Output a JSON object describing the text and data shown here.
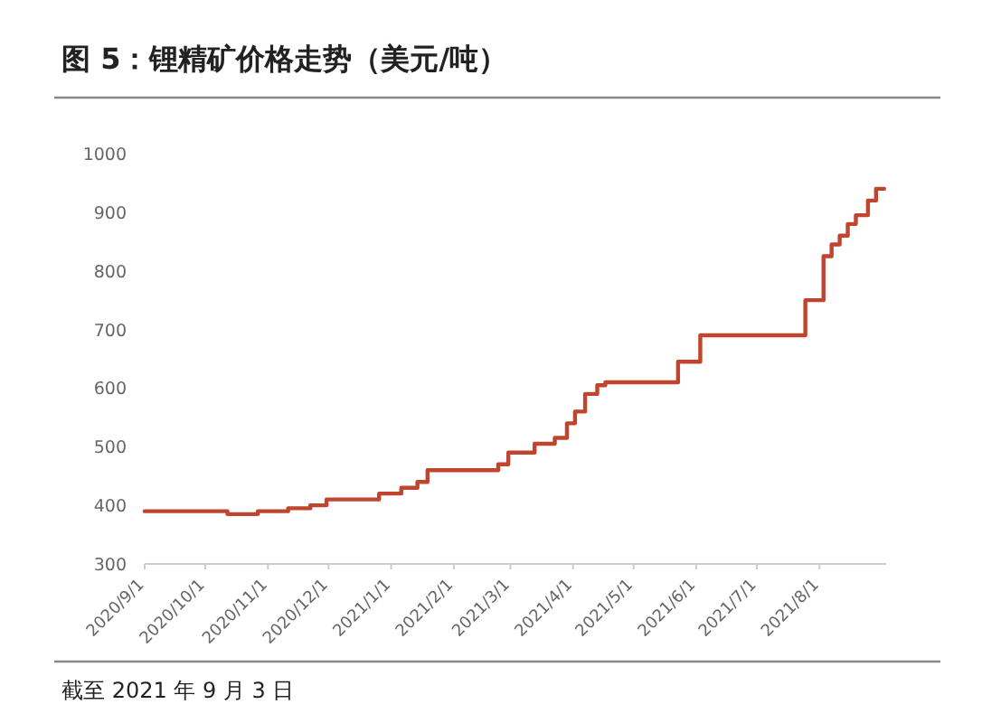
{
  "chart_data": {
    "type": "step",
    "title": "图 5：锂精矿价格走势（美元/吨）",
    "annotations": [
      "截至 2021 年 9 月 3 日"
    ],
    "x": [
      "2020-09-01",
      "2020-10-12",
      "2020-10-27",
      "2020-11-11",
      "2020-11-22",
      "2020-11-30",
      "2020-12-26",
      "2021-01-06",
      "2021-01-14",
      "2021-01-19",
      "2021-02-23",
      "2021-02-28",
      "2021-03-13",
      "2021-03-23",
      "2021-03-29",
      "2021-04-02",
      "2021-04-07",
      "2021-04-13",
      "2021-04-17",
      "2021-05-23",
      "2021-06-03",
      "2021-07-25",
      "2021-08-03",
      "2021-08-07",
      "2021-08-11",
      "2021-08-15",
      "2021-08-19",
      "2021-08-25",
      "2021-08-29",
      "2021-09-02"
    ],
    "series": [
      {
        "color": "#c0452e",
        "values": [
          390,
          385,
          390,
          395,
          400,
          410,
          420,
          430,
          440,
          460,
          470,
          490,
          505,
          515,
          540,
          560,
          590,
          605,
          610,
          645,
          690,
          750,
          825,
          845,
          860,
          880,
          895,
          920,
          940,
          940
        ]
      }
    ],
    "xlim": [
      "2020-09-01",
      "2021-09-03"
    ],
    "xticks": [
      {
        "value": "2020-09-01",
        "label": "2020/9/1"
      },
      {
        "value": "2020-10-01",
        "label": "2020/10/1"
      },
      {
        "value": "2020-11-01",
        "label": "2020/11/1"
      },
      {
        "value": "2020-12-01",
        "label": "2020/12/1"
      },
      {
        "value": "2021-01-01",
        "label": "2021/1/1"
      },
      {
        "value": "2021-02-01",
        "label": "2021/2/1"
      },
      {
        "value": "2021-03-01",
        "label": "2021/3/1"
      },
      {
        "value": "2021-04-01",
        "label": "2021/4/1"
      },
      {
        "value": "2021-05-01",
        "label": "2021/5/1"
      },
      {
        "value": "2021-06-01",
        "label": "2021/6/1"
      },
      {
        "value": "2021-07-01",
        "label": "2021/7/1"
      },
      {
        "value": "2021-08-01",
        "label": "2021/8/1"
      }
    ],
    "ylim": [
      300,
      1000
    ],
    "yticks": [
      300,
      400,
      500,
      600,
      700,
      800,
      900,
      1000
    ]
  }
}
